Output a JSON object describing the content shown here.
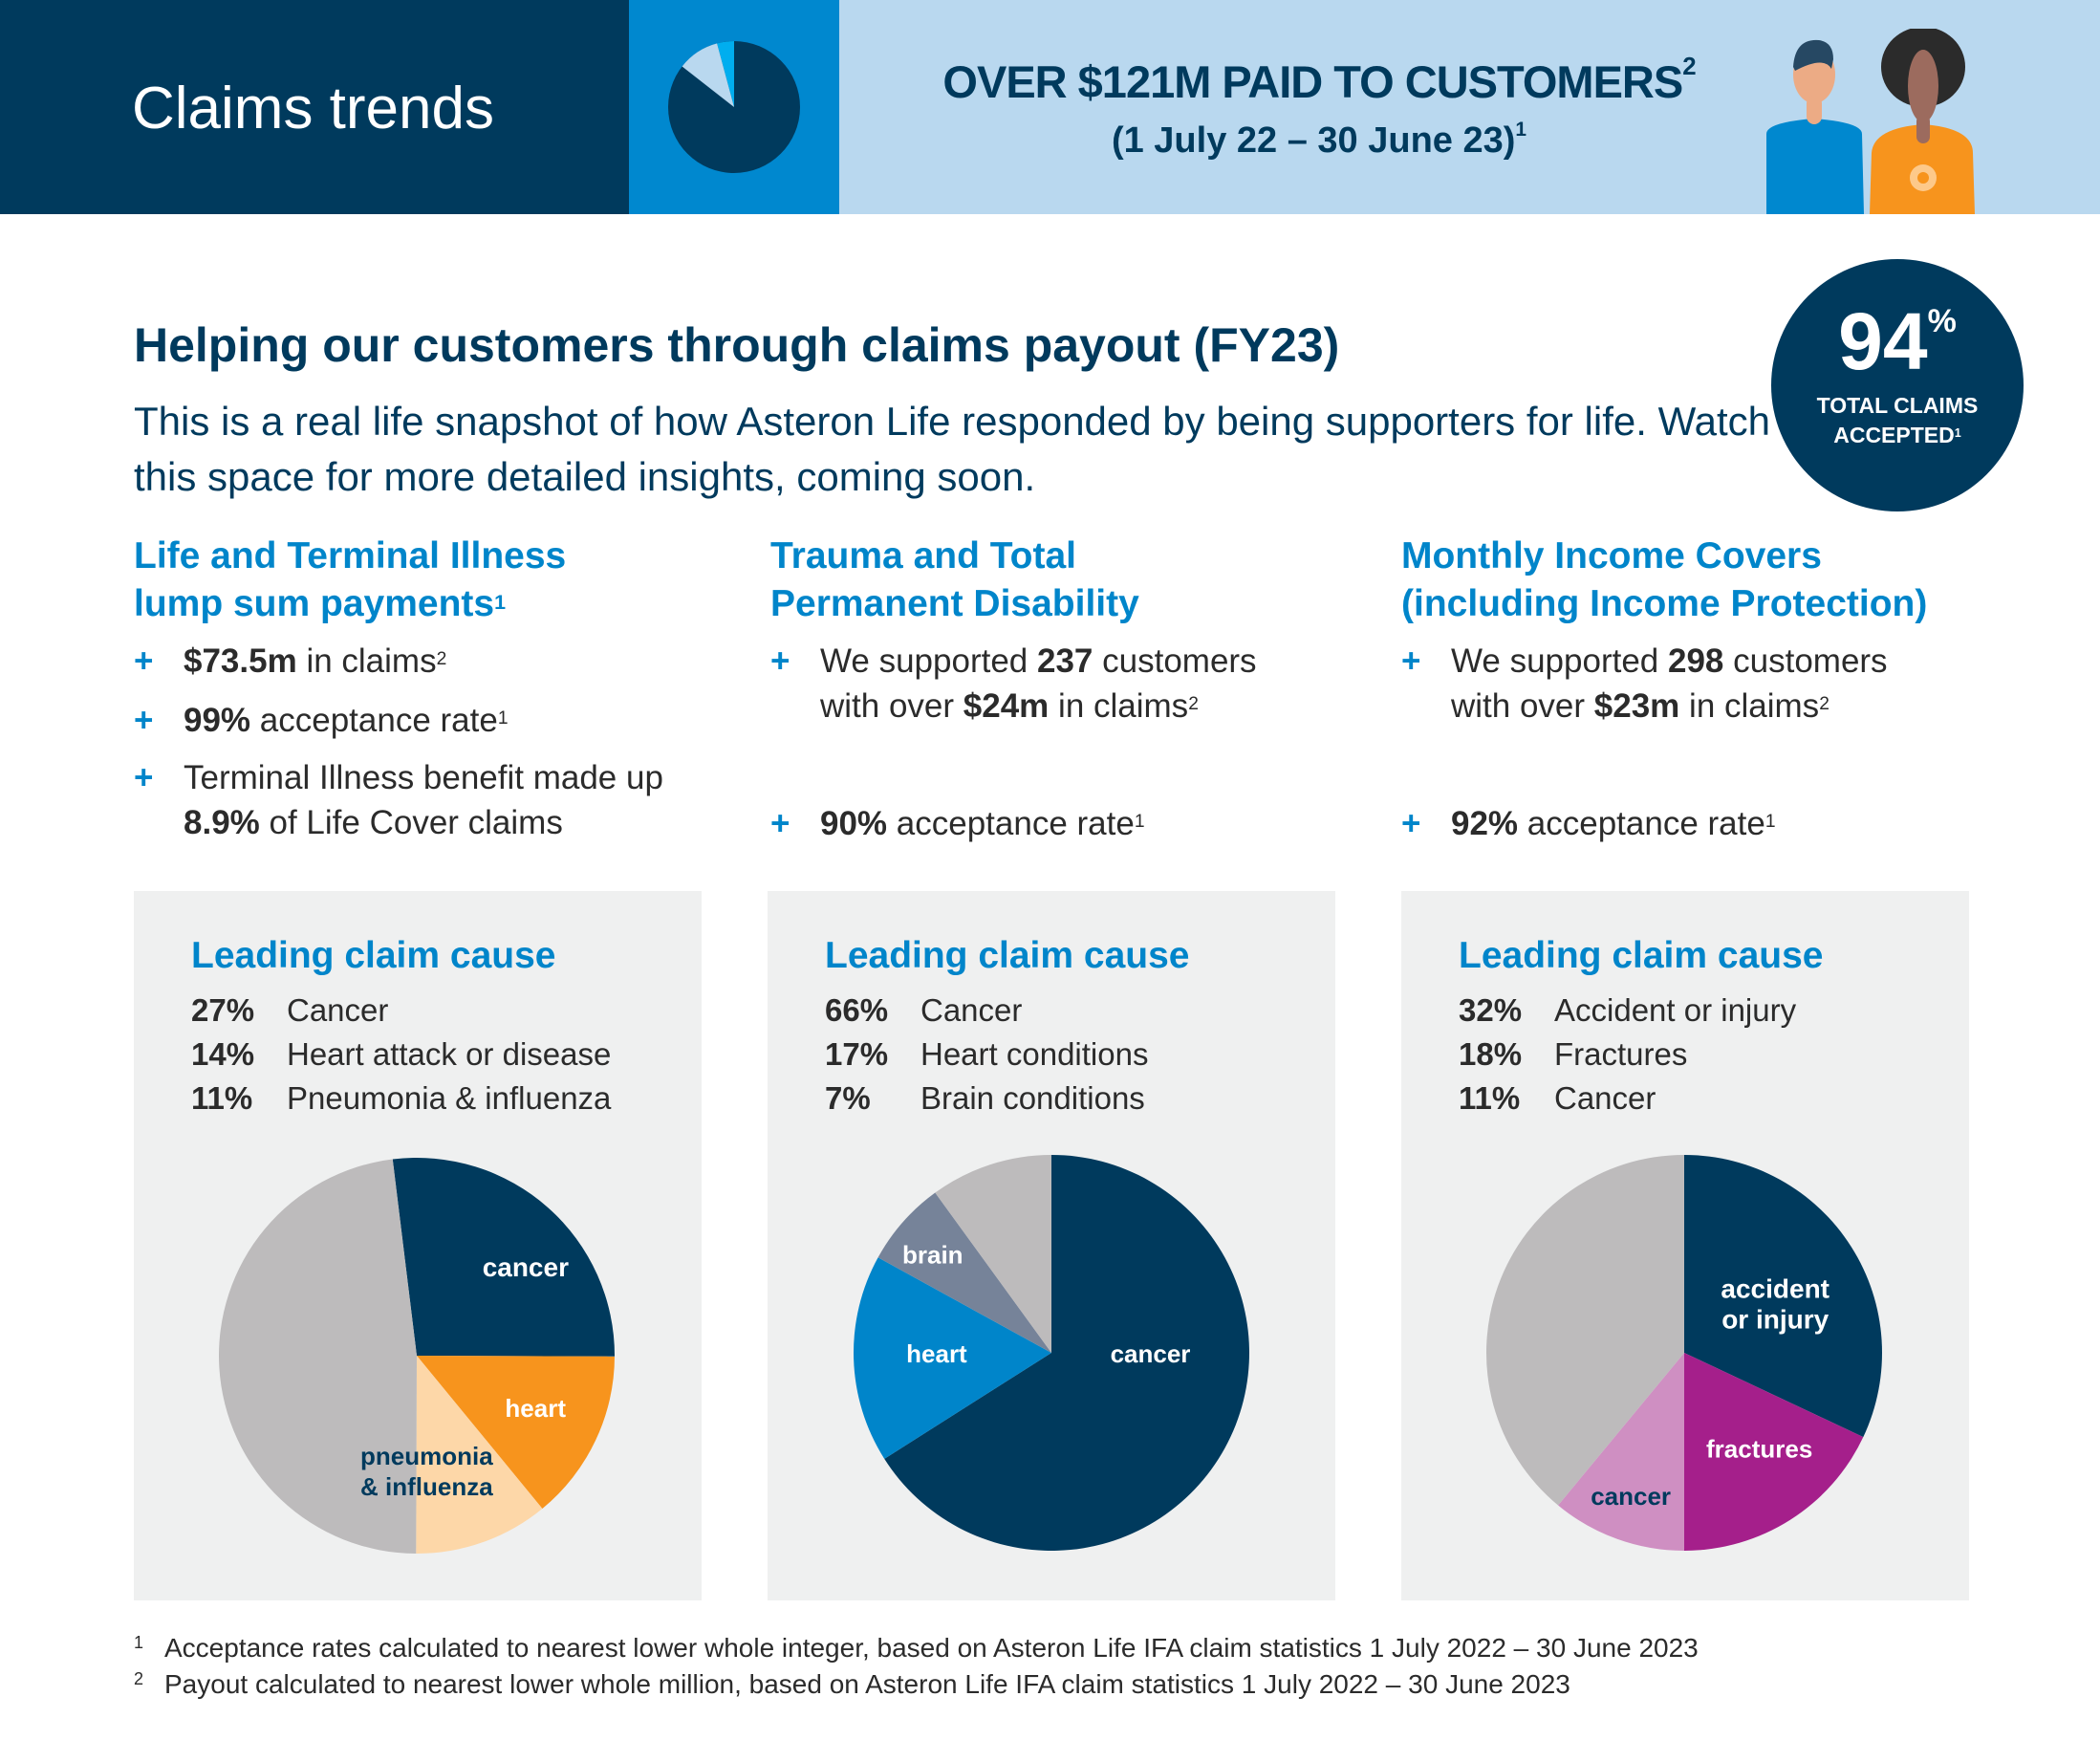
{
  "header": {
    "title": "Claims trends",
    "banner_line1": "OVER $121M PAID TO CUSTOMERS",
    "banner_line1_sup": "2",
    "banner_line2": "(1 July 22 – 30 June 23)",
    "banner_line2_sup": "1",
    "header_pie_icon": "pie-chart-icon",
    "people_icon": "customers-illustration"
  },
  "badge": {
    "value": "94",
    "unit": "%",
    "line1": "TOTAL CLAIMS",
    "line2": "ACCEPTED",
    "sup": "1"
  },
  "intro": {
    "heading": "Helping our customers through claims payout (FY23)",
    "text": "This is a real life snapshot of how Asteron Life responded by being supporters for life. Watch this space for more detailed insights, coming soon."
  },
  "columns": [
    {
      "title1": "Life and Terminal Illness",
      "title2": "lump sum payments",
      "title_sup": "1",
      "bullets": [
        {
          "bold": "$73.5m",
          "text": " in claims",
          "sup": "2"
        },
        {
          "bold": "99%",
          "text": " acceptance rate",
          "sup": "1"
        },
        {
          "pre": "Terminal Illness benefit made up ",
          "bold": "8.9%",
          "text": " of Life Cover claims"
        }
      ]
    },
    {
      "title1": "Trauma and Total",
      "title2": "Permanent Disability",
      "bullets": [
        {
          "pre": "We supported ",
          "bold": "237",
          "mid": " customers with over ",
          "bold2": "$24m",
          "text": " in claims",
          "sup": "2"
        },
        {
          "bold": "90%",
          "text": " acceptance rate",
          "sup": "1"
        }
      ]
    },
    {
      "title1": "Monthly Income Covers",
      "title2": "(including Income Protection)",
      "bullets": [
        {
          "pre": "We supported ",
          "bold": "298",
          "mid": " customers with over ",
          "bold2": "$23m",
          "text": " in claims",
          "sup": "2"
        },
        {
          "bold": "92%",
          "text": " acceptance rate",
          "sup": "1"
        }
      ]
    }
  ],
  "bullet_symbol": "+",
  "chart_data": [
    {
      "type": "pie",
      "title": "Leading claim cause",
      "legend": [
        {
          "pct": "27%",
          "label": "Cancer"
        },
        {
          "pct": "14%",
          "label": "Heart attack or disease"
        },
        {
          "pct": "11%",
          "label": "Pneumonia & influenza"
        }
      ],
      "slices": [
        {
          "label": "cancer",
          "value": 27,
          "color": "#003a5d",
          "text_color": "#ffffff"
        },
        {
          "label": "heart",
          "value": 14,
          "color": "#f7941d",
          "text_color": "#ffffff"
        },
        {
          "label": "pneumonia & influenza",
          "value": 11,
          "color": "#fdd7a8",
          "text_color": "#003a5d"
        },
        {
          "label": "",
          "value": 48,
          "color": "#bdbbbc"
        }
      ]
    },
    {
      "type": "pie",
      "title": "Leading claim cause",
      "legend": [
        {
          "pct": "66%",
          "label": "Cancer"
        },
        {
          "pct": "17%",
          "label": "Heart conditions"
        },
        {
          "pct": "7%",
          "label": "Brain conditions"
        }
      ],
      "slices": [
        {
          "label": "cancer",
          "value": 66,
          "color": "#003a5d",
          "text_color": "#ffffff"
        },
        {
          "label": "heart",
          "value": 17,
          "color": "#0085ca",
          "text_color": "#ffffff"
        },
        {
          "label": "brain",
          "value": 7,
          "color": "#768399",
          "text_color": "#ffffff"
        },
        {
          "label": "",
          "value": 10,
          "color": "#bdbbbc"
        }
      ]
    },
    {
      "type": "pie",
      "title": "Leading claim cause",
      "legend": [
        {
          "pct": "32%",
          "label": "Accident or injury"
        },
        {
          "pct": "18%",
          "label": "Fractures"
        },
        {
          "pct": "11%",
          "label": "Cancer"
        }
      ],
      "slices": [
        {
          "label": "accident or injury",
          "value": 32,
          "color": "#003a5d",
          "text_color": "#ffffff"
        },
        {
          "label": "fractures",
          "value": 18,
          "color": "#a51f8b",
          "text_color": "#ffffff"
        },
        {
          "label": "cancer",
          "value": 11,
          "color": "#cf8fc2",
          "text_color": "#003a5d"
        },
        {
          "label": "",
          "value": 39,
          "color": "#bdbbbc"
        }
      ]
    }
  ],
  "footnotes": [
    {
      "n": "1",
      "text": "Acceptance rates calculated to nearest lower whole integer, based on Asteron Life IFA claim statistics 1 July 2022 – 30 June 2023"
    },
    {
      "n": "2",
      "text": "Payout calculated to nearest lower whole million, based on Asteron Life IFA claim statistics 1 July 2022 – 30 June 2023"
    }
  ]
}
